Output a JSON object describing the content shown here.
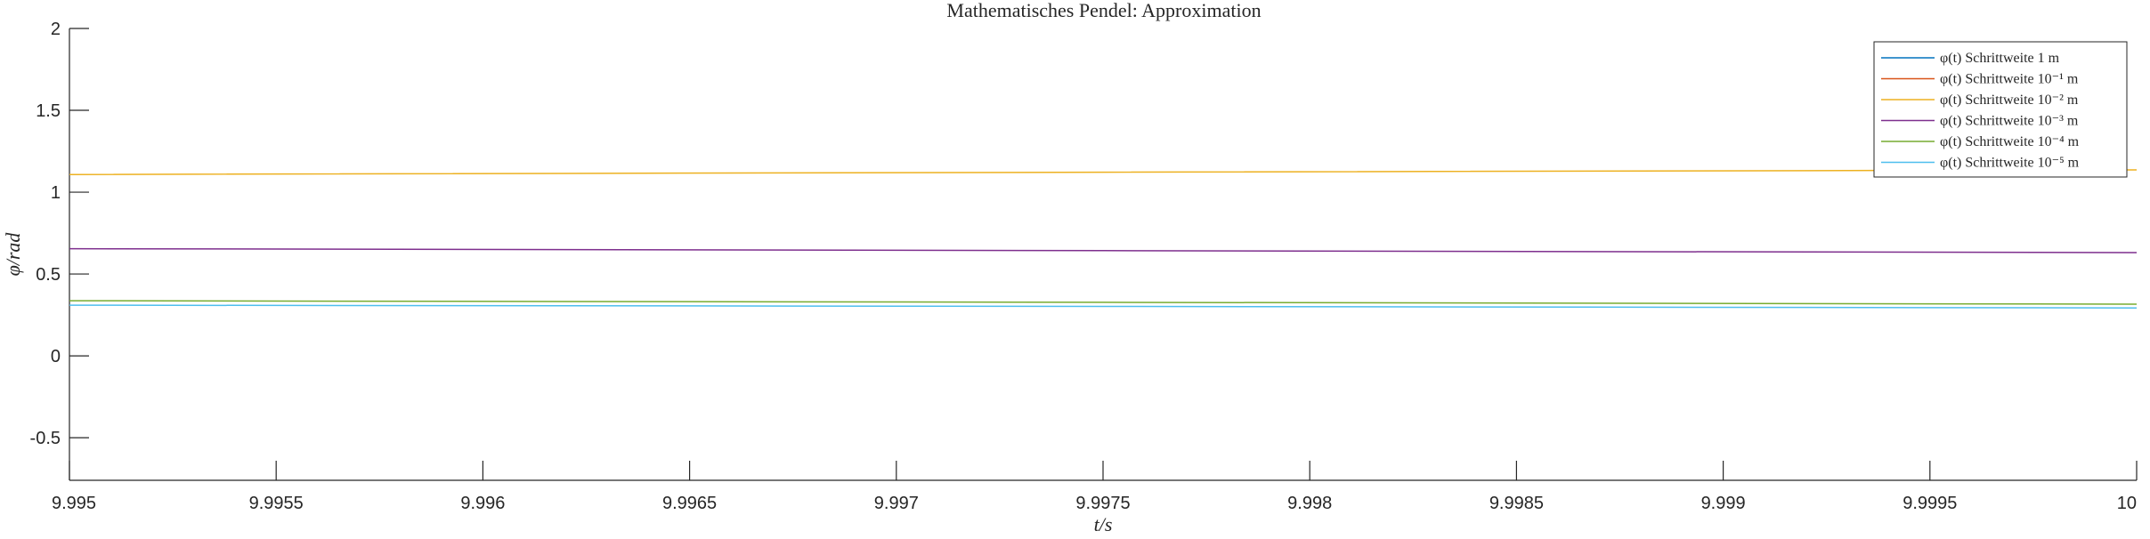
{
  "chart_data": {
    "type": "line",
    "title": "Mathematisches Pendel: Approximation",
    "xlabel": "t/s",
    "ylabel": "φ/rad",
    "xlim": [
      9.995,
      10
    ],
    "ylim": [
      -0.76,
      2
    ],
    "xticks": [
      "9.995",
      "9.9955",
      "9.996",
      "9.9965",
      "9.997",
      "9.9975",
      "9.998",
      "9.9985",
      "9.999",
      "9.9995",
      "10"
    ],
    "yticks": [
      "-0.5",
      "0",
      "0.5",
      "1",
      "1.5",
      "2"
    ],
    "grid": false,
    "legend_position": "top-right",
    "series": [
      {
        "name": "φ(t) Schrittweite 1 m",
        "color": "#0072BD",
        "x": [],
        "y": []
      },
      {
        "name": "φ(t) Schrittweite 10⁻¹ m",
        "color": "#D95319",
        "x": [],
        "y": []
      },
      {
        "name": "φ(t) Schrittweite 10⁻² m",
        "color": "#EDB120",
        "x": [
          9.995,
          9.9975,
          10
        ],
        "y": [
          1.108,
          1.122,
          1.136
        ]
      },
      {
        "name": "φ(t) Schrittweite 10⁻³ m",
        "color": "#7E2F8E",
        "x": [
          9.995,
          9.9975,
          10
        ],
        "y": [
          0.655,
          0.643,
          0.631
        ]
      },
      {
        "name": "φ(t) Schrittweite 10⁻⁴ m",
        "color": "#77AC30",
        "x": [
          9.995,
          9.9975,
          10
        ],
        "y": [
          0.337,
          0.327,
          0.316
        ]
      },
      {
        "name": "φ(t) Schrittweite 10⁻⁵ m",
        "color": "#4DBEEE",
        "x": [
          9.995,
          9.9975,
          10
        ],
        "y": [
          0.31,
          0.302,
          0.293
        ]
      }
    ]
  }
}
